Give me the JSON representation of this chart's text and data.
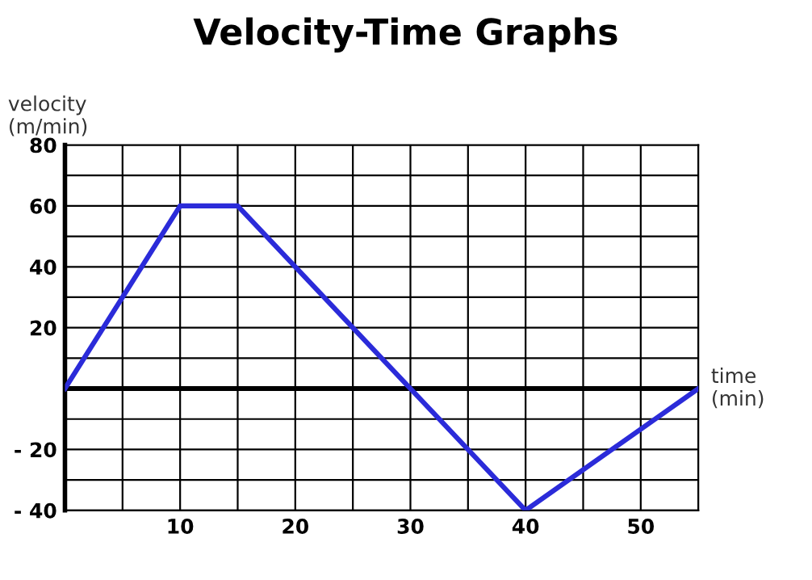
{
  "chart_data": {
    "type": "line",
    "title": "Velocity-Time Graphs",
    "xlabel": "time\n(min)",
    "ylabel": "velocity\n(m/min)",
    "x": [
      0,
      10,
      15,
      30,
      40,
      55
    ],
    "series": [
      {
        "color": "#2b2bd9",
        "values": [
          0,
          60,
          60,
          0,
          -40,
          0
        ]
      }
    ],
    "xlim": [
      0,
      55
    ],
    "xticks": [
      {
        "value": 5,
        "label": null
      },
      10,
      {
        "value": 15,
        "label": null
      },
      20,
      {
        "value": 25,
        "label": null
      },
      30,
      {
        "value": 35,
        "label": null
      },
      40,
      {
        "value": 45,
        "label": null
      },
      50,
      {
        "value": 55,
        "label": null
      }
    ],
    "ylim": [
      -40,
      80
    ],
    "yticks": [
      {
        "value": -40,
        "label": "- 40"
      },
      {
        "value": -30,
        "label": null
      },
      {
        "value": -20,
        "label": "- 20"
      },
      {
        "value": -10,
        "label": null
      },
      {
        "value": 0,
        "label": null
      },
      {
        "value": 10,
        "label": null
      },
      20,
      {
        "value": 30,
        "label": null
      },
      40,
      {
        "value": 50,
        "label": null
      },
      60,
      {
        "value": 70,
        "label": null
      },
      80
    ],
    "ref_lines": [
      {
        "axis": "y",
        "value": 0,
        "color": "#000000"
      }
    ],
    "grid": true,
    "marker": "none",
    "line_style": "solid"
  }
}
